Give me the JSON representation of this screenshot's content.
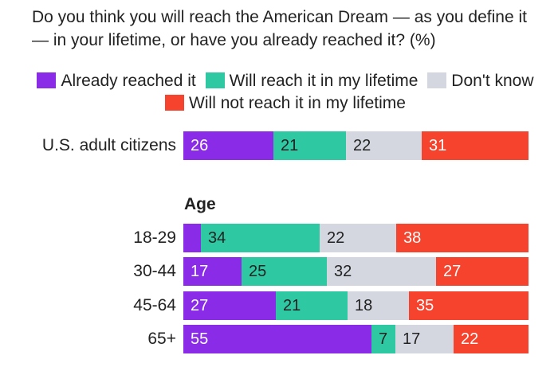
{
  "chart_data": {
    "type": "bar",
    "orientation": "horizontal",
    "stacked": true,
    "title": "Do you think you will reach the American Dream — as you define it — in your lifetime, or have you already reached it? (%)",
    "legend": [
      {
        "name": "Already reached it",
        "color": "#8a2be8"
      },
      {
        "name": "Will reach it in my lifetime",
        "color": "#2ec9a3"
      },
      {
        "name": "Don't know",
        "color": "#d4d7e0"
      },
      {
        "name": "Will not reach it in my lifetime",
        "color": "#f5432d"
      }
    ],
    "xlim": [
      0,
      100
    ],
    "groups": [
      {
        "header": "",
        "rows": [
          {
            "label": "U.S. adult citizens",
            "values": [
              26,
              21,
              22,
              31
            ]
          }
        ]
      },
      {
        "header": "Age",
        "rows": [
          {
            "label": "18-29",
            "values": [
              5,
              34,
              22,
              38
            ],
            "labels": [
              "",
              "34",
              "22",
              "38"
            ]
          },
          {
            "label": "30-44",
            "values": [
              17,
              25,
              32,
              27
            ]
          },
          {
            "label": "45-64",
            "values": [
              27,
              21,
              18,
              35
            ]
          },
          {
            "label": "65+",
            "values": [
              55,
              7,
              17,
              22
            ]
          }
        ]
      }
    ]
  }
}
